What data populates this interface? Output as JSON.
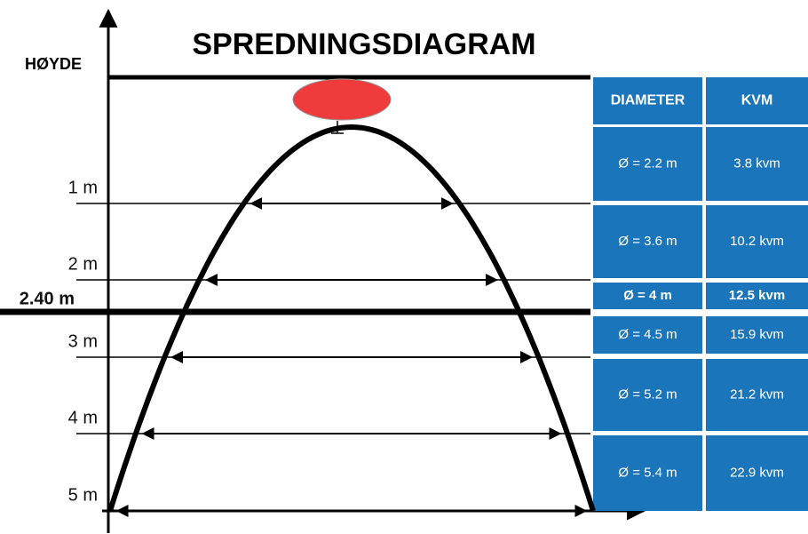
{
  "title": "SPREDNINGSDIAGRAM",
  "axis_label": "HØYDE",
  "levels": [
    "1 m",
    "2 m",
    "2.40 m",
    "3 m",
    "4 m",
    "5 m"
  ],
  "table": {
    "header": [
      "DIAMETER",
      "KVM"
    ],
    "rows": [
      [
        "Ø = 2.2 m",
        "3.8 kvm"
      ],
      [
        "Ø = 3.6 m",
        "10.2 kvm"
      ],
      [
        "Ø = 4 m",
        "12.5 kvm"
      ],
      [
        "Ø = 4.5 m",
        "15.9 kvm"
      ],
      [
        "Ø = 5.2 m",
        "21.2 kvm"
      ],
      [
        "Ø = 5.4 m",
        "22.9 kvm"
      ]
    ]
  }
}
